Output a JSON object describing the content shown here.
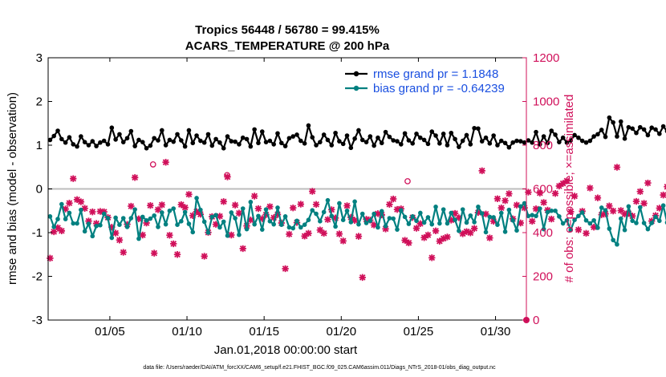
{
  "chart_data": {
    "type": "line",
    "title": "Tropics 56448 / 56780 = 99.415%",
    "subtitle": "ACARS_TEMPERATURE @ 200 hPa",
    "xlabel": "Jan.01,2018 00:00:00 start",
    "ylabel_left": "rmse and bias (model - observation)",
    "ylabel_right": "# of obs: o=possible; ×=assimilated",
    "footnote": "data file: /Users/raeder/DAI/ATM_forcXX/CAM6_setup/f.e21.FHIST_BGC.f09_025.CAM6assim.011/Diags_NTrS_2018-01/obs_diag_output.nc",
    "xlim": [
      1,
      32
    ],
    "ylim_left": [
      -3,
      3
    ],
    "ylim_right": [
      0,
      1200
    ],
    "x_ticks": [
      5,
      10,
      15,
      20,
      25,
      30
    ],
    "x_tick_labels": [
      "01/05",
      "01/10",
      "01/15",
      "01/20",
      "01/25",
      "01/30"
    ],
    "y_ticks_left": [
      -3,
      -2,
      -1,
      0,
      1,
      2,
      3
    ],
    "y_ticks_right": [
      0,
      200,
      400,
      600,
      800,
      1000,
      1200
    ],
    "grid": false,
    "zero_line": 0,
    "legend_position": "top-right",
    "colors": {
      "rmse": "#000000",
      "bias": "#008080",
      "obs": "#d0105a",
      "legend_text": "#1a4fe0",
      "right_axis": "#d0105a"
    },
    "series": [
      {
        "name": "rmse grand pr = 1.1848",
        "axis": "left",
        "x_start": 1.125,
        "x_step": 0.25,
        "values": [
          1.12,
          1.21,
          1.33,
          1.14,
          1.06,
          1.18,
          1.02,
          0.97,
          1.2,
          1.07,
          1.0,
          1.09,
          0.98,
          1.06,
          1.1,
          1.02,
          1.4,
          1.13,
          1.25,
          1.07,
          1.16,
          1.32,
          0.98,
          1.12,
          1.07,
          0.93,
          0.99,
          1.16,
          1.11,
          1.34,
          1.0,
          1.12,
          1.08,
          1.25,
          1.11,
          0.97,
          1.34,
          1.05,
          1.22,
          1.1,
          1.06,
          1.25,
          0.99,
          1.14,
          1.06,
          0.93,
          1.2,
          1.09,
          1.08,
          1.02,
          1.17,
          1.14,
          0.97,
          1.36,
          1.05,
          1.31,
          1.07,
          1.1,
          1.02,
          1.27,
          1.05,
          0.98,
          1.16,
          1.2,
          1.24,
          1.1,
          1.04,
          1.45,
          1.18,
          1.0,
          1.07,
          1.24,
          1.12,
          1.0,
          1.28,
          1.09,
          1.03,
          1.22,
          0.94,
          1.15,
          1.34,
          1.12,
          1.07,
          1.2,
          0.99,
          1.17,
          1.05,
          1.3,
          1.19,
          1.11,
          1.09,
          1.02,
          1.27,
          1.11,
          1.04,
          1.26,
          1.17,
          1.12,
          1.03,
          1.31,
          1.22,
          1.04,
          1.26,
          1.0,
          1.28,
          1.14,
          0.96,
          1.1,
          1.23,
          1.02,
          1.39,
          1.38,
          1.09,
          1.17,
          1.04,
          1.22,
          1.0,
          1.1,
          1.05,
          0.95,
          1.06,
          1.1,
          1.09,
          1.06,
          1.11,
          1.06,
          1.3,
          1.02,
          1.2,
          1.05,
          1.33,
          1.24,
          1.07,
          1.17,
          1.06,
          1.11,
          1.23,
          1.17,
          1.1,
          1.06,
          1.1,
          1.2,
          1.25,
          1.35,
          1.19,
          1.63,
          1.52,
          1.2,
          1.54,
          1.15,
          1.41,
          1.38,
          1.28,
          1.41,
          1.36,
          1.23,
          1.4,
          1.36,
          1.26,
          1.43,
          1.32,
          1.44,
          1.5,
          1.37,
          1.23,
          1.14,
          1.3,
          1.24,
          1.34,
          1.26,
          1.25,
          1.18,
          1.35,
          1.2,
          1.38,
          1.31,
          1.24,
          1.29,
          1.2,
          1.33,
          1.08,
          1.27,
          0.87,
          1.14,
          1.14,
          1.35,
          1.31,
          1.21,
          1.23,
          1.23,
          1.38,
          1.32,
          1.39,
          1.3
        ]
      },
      {
        "name": "bias grand pr = -0.64239",
        "axis": "left",
        "x_start": 1.125,
        "x_step": 0.25,
        "values": [
          -0.63,
          -0.87,
          -0.69,
          -0.35,
          -0.69,
          -0.55,
          -0.79,
          -0.79,
          -0.48,
          -0.97,
          -0.8,
          -1.08,
          -0.85,
          -0.83,
          -0.57,
          -0.67,
          -1.12,
          -0.66,
          -0.82,
          -0.67,
          -0.87,
          -0.67,
          -0.47,
          -1.14,
          -0.64,
          -0.72,
          -0.68,
          -0.61,
          -0.87,
          -0.54,
          -0.81,
          -0.5,
          -0.45,
          -0.82,
          -0.74,
          -0.53,
          -0.8,
          -0.99,
          -0.21,
          -0.48,
          -0.75,
          -1.0,
          -0.64,
          -0.6,
          -0.88,
          -0.75,
          -1.07,
          -0.54,
          -0.67,
          -1.05,
          -0.45,
          -0.92,
          -0.3,
          -0.81,
          -0.62,
          -0.93,
          -0.47,
          -0.74,
          -0.81,
          -0.43,
          -0.82,
          -0.63,
          -0.88,
          -0.9,
          -0.73,
          -0.88,
          -0.82,
          -0.71,
          -0.49,
          -0.57,
          -0.74,
          -0.53,
          -0.26,
          -0.62,
          -0.86,
          -0.33,
          -0.71,
          -0.5,
          -0.76,
          -0.29,
          -0.81,
          -0.57,
          -0.78,
          -0.73,
          -0.57,
          -0.88,
          -0.51,
          -0.85,
          -0.67,
          -0.68,
          -0.93,
          -0.49,
          -0.64,
          -0.8,
          -0.63,
          -0.73,
          -0.55,
          -0.77,
          -0.65,
          -0.81,
          -0.41,
          -0.79,
          -0.47,
          -0.79,
          -0.55,
          -0.71,
          -0.96,
          -0.47,
          -0.77,
          -0.61,
          -0.76,
          -0.41,
          -0.56,
          -0.99,
          -0.64,
          -0.65,
          -0.82,
          -0.55,
          -0.98,
          -0.48,
          -0.72,
          -0.95,
          -0.4,
          -0.33,
          -0.62,
          -0.6,
          -0.62,
          -0.45,
          -0.92,
          -0.53,
          -0.5,
          -0.5,
          -0.63,
          -0.79,
          -0.72,
          -0.94,
          -0.71,
          -0.62,
          -0.54,
          -0.72,
          -0.79,
          -0.72,
          -0.89,
          -0.43,
          -0.49,
          -0.91,
          -1.17,
          -1.27,
          -0.68,
          -0.94,
          -0.4,
          -0.73,
          -0.78,
          -0.42,
          -0.78,
          -0.92,
          -0.78,
          -0.64,
          -0.73,
          -0.38,
          -0.77,
          -0.62,
          -0.72,
          -0.78,
          -0.55,
          -0.64,
          -1.0,
          -0.51,
          -0.58,
          -0.85,
          -0.76,
          -0.75,
          -0.73,
          -0.59,
          -0.67,
          -0.73,
          -0.31,
          -0.63,
          -0.41,
          -0.63,
          -0.7,
          -0.54,
          -0.8,
          -0.5,
          -0.76,
          -0.53,
          -0.06,
          -0.73,
          -0.64,
          -0.54,
          -0.45,
          -0.85,
          -0.88,
          -0.84,
          -0.59,
          -0.74
        ]
      },
      {
        "name": "# of obs possible",
        "axis": "right",
        "marker": "o",
        "x": [
          7.8,
          12.6,
          24.3
        ],
        "values": [
          712,
          663,
          635
        ]
      },
      {
        "name": "# of obs assimilated",
        "axis": "right",
        "marker": "x",
        "x_start": 1.125,
        "x_step": 0.25,
        "values": [
          283,
          404,
          422,
          408,
          508,
          535,
          647,
          551,
          541,
          511,
          453,
          495,
          442,
          497,
          495,
          469,
          425,
          398,
          366,
          310,
          438,
          521,
          652,
          463,
          389,
          444,
          524,
          306,
          505,
          527,
          722,
          388,
          349,
          300,
          528,
          515,
          575,
          478,
          496,
          484,
          292,
          401,
          473,
          438,
          475,
          542,
          655,
          389,
          526,
          489,
          327,
          431,
          458,
          567,
          510,
          464,
          482,
          519,
          468,
          483,
          444,
          235,
          393,
          513,
          446,
          530,
          384,
          397,
          589,
          529,
          412,
          397,
          460,
          505,
          467,
          394,
          362,
          523,
          470,
          456,
          383,
          195,
          461,
          457,
          435,
          487,
          481,
          417,
          529,
          554,
          506,
          509,
          365,
          353,
          469,
          420,
          441,
          377,
          389,
          285,
          408,
          361,
          373,
          380,
          457,
          488,
          468,
          395,
          405,
          399,
          419,
          492,
          683,
          485,
          376,
          452,
          555,
          513,
          546,
          578,
          463,
          526,
          444,
          513,
          585,
          452,
          509,
          581,
          538,
          503,
          462,
          579,
          613,
          625,
          637,
          496,
          567,
          413,
          498,
          397,
          604,
          425,
          559,
          482,
          486,
          522,
          499,
          699,
          501,
          485,
          488,
          476,
          543,
          588,
          534,
          627,
          453,
          478,
          512,
          572,
          610,
          520,
          556,
          444,
          507,
          485,
          826,
          457,
          458,
          593,
          577,
          523,
          493,
          420,
          579,
          604,
          496,
          560,
          696,
          589,
          441,
          458,
          425,
          430,
          409,
          397,
          577,
          555,
          578,
          648,
          628,
          527,
          491,
          414,
          533,
          510,
          416,
          390
        ]
      }
    ]
  }
}
